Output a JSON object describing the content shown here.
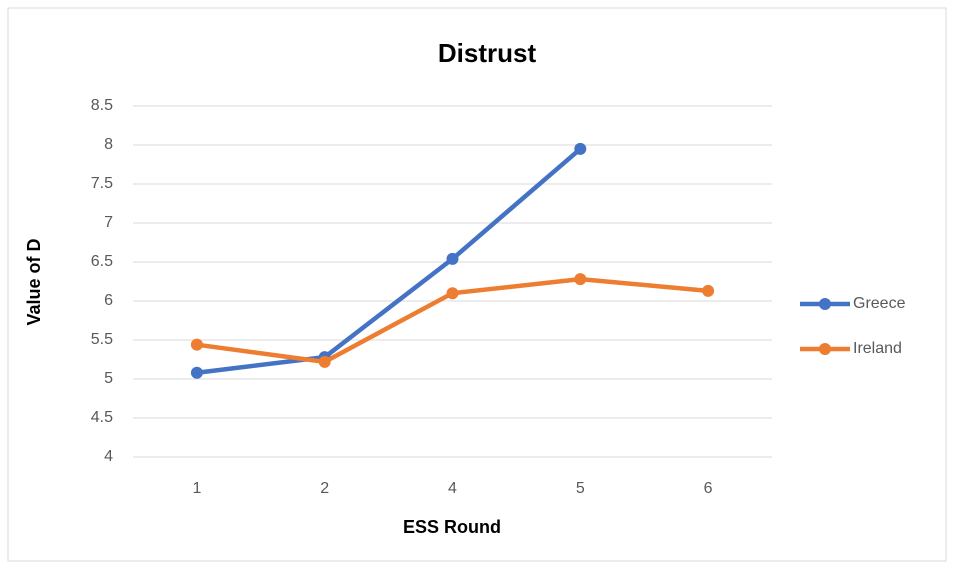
{
  "chart_data": {
    "type": "line",
    "title": "Distrust",
    "x_label": "ESS Round",
    "y_label": "Value of D",
    "categories": [
      "1",
      "2",
      "4",
      "5",
      "6"
    ],
    "series": [
      {
        "name": "Greece",
        "color": "#4472c4",
        "values": [
          5.08,
          5.28,
          6.54,
          7.95,
          null
        ]
      },
      {
        "name": "Ireland",
        "color": "#ed7d31",
        "values": [
          5.44,
          5.22,
          6.1,
          6.28,
          6.13
        ]
      }
    ],
    "ylim": [
      4,
      8.5
    ],
    "yticks": [
      4,
      4.5,
      5,
      5.5,
      6,
      6.5,
      7,
      7.5,
      8,
      8.5
    ],
    "grid": true,
    "legend": "right"
  }
}
